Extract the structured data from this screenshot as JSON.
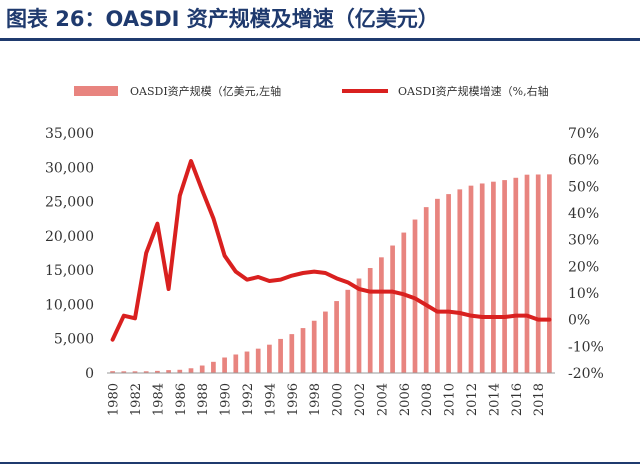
{
  "title": "图表 26：OASDI 资产规模及增速（亿美元）",
  "colors": {
    "bar": "#e8847f",
    "line": "#d9201f",
    "title": "#1f3a6e",
    "rule": "#1f3a6e"
  },
  "chart_data": {
    "type": "bar+line",
    "title": "图表 26：OASDI 资产规模及增速（亿美元）",
    "legend_position": "top",
    "grid": false,
    "x": [
      1980,
      1981,
      1982,
      1983,
      1984,
      1985,
      1986,
      1987,
      1988,
      1989,
      1990,
      1991,
      1992,
      1993,
      1994,
      1995,
      1996,
      1997,
      1998,
      1999,
      2000,
      2001,
      2002,
      2003,
      2004,
      2005,
      2006,
      2007,
      2008,
      2009,
      2010,
      2011,
      2012,
      2013,
      2014,
      2015,
      2016,
      2017,
      2018,
      2019
    ],
    "x_tick_labels": [
      "1980",
      "1982",
      "1984",
      "1986",
      "1988",
      "1990",
      "1992",
      "1994",
      "1996",
      "1998",
      "2000",
      "2002",
      "2004",
      "2006",
      "2008",
      "2010",
      "2012",
      "2014",
      "2016",
      "2018"
    ],
    "y_left": {
      "min": 0,
      "max": 35000,
      "ticks": [
        "0",
        "5,000",
        "10,000",
        "15,000",
        "20,000",
        "25,000",
        "30,000",
        "35,000"
      ]
    },
    "y_right": {
      "min": -20,
      "max": 70,
      "ticks": [
        "-20%",
        "-10%",
        "0%",
        "10%",
        "20%",
        "30%",
        "40%",
        "50%",
        "60%",
        "70%"
      ]
    },
    "series": [
      {
        "name": "OASDI资产规模（亿美元,左轴",
        "type": "bar",
        "axis": "left",
        "values": [
          265,
          245,
          245,
          250,
          310,
          420,
          470,
          690,
          1090,
          1630,
          2260,
          2700,
          3130,
          3550,
          4130,
          4970,
          5670,
          6550,
          7620,
          8960,
          10490,
          12130,
          13780,
          15310,
          16870,
          18590,
          20480,
          22380,
          24190,
          25400,
          26090,
          26780,
          27320,
          27640,
          27900,
          28130,
          28470,
          28920,
          28950,
          28970
        ]
      },
      {
        "name": "OASDI资产规模增速（%,右轴",
        "type": "line",
        "axis": "right",
        "values": [
          -7.5,
          1.5,
          0.5,
          25,
          36,
          11.5,
          46.5,
          59.5,
          48.5,
          38,
          24,
          18,
          15,
          16,
          14.5,
          15,
          16.5,
          17.5,
          18,
          17.5,
          15.5,
          14,
          11.5,
          10.5,
          10.5,
          10.5,
          9.5,
          8,
          5.5,
          3,
          3,
          2.5,
          1.5,
          1,
          1,
          1,
          1.5,
          1.5,
          0,
          0
        ]
      }
    ]
  }
}
